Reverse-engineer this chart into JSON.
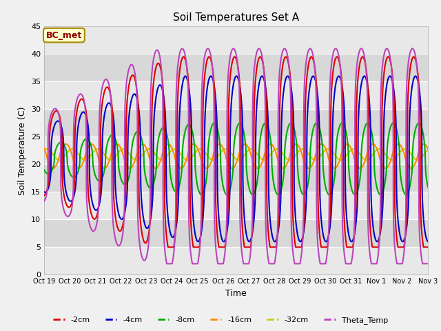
{
  "title": "Soil Temperatures Set A",
  "xlabel": "Time",
  "ylabel": "Soil Temperature (C)",
  "ylim": [
    0,
    45
  ],
  "annotation": "BC_met",
  "background_color": "#f0f0f0",
  "plot_bg_color": "#e8e8e8",
  "grid_color": "white",
  "series": {
    "-2cm": {
      "color": "#dd0000",
      "lw": 1.5
    },
    "-4cm": {
      "color": "#0000cc",
      "lw": 1.5
    },
    "-8cm": {
      "color": "#00aa00",
      "lw": 1.5
    },
    "-16cm": {
      "color": "#ff8800",
      "lw": 1.5
    },
    "-32cm": {
      "color": "#cccc00",
      "lw": 1.5
    },
    "Theta_Temp": {
      "color": "#bb44bb",
      "lw": 1.5
    }
  },
  "x_ticks": [
    "Oct 19",
    "Oct 20",
    "Oct 21",
    "Oct 22",
    "Oct 23",
    "Oct 24",
    "Oct 25",
    "Oct 26",
    "Oct 27",
    "Oct 28",
    "Oct 29",
    "Oct 30",
    "Oct 31",
    "Nov 1",
    "Nov 2",
    "Nov 3"
  ],
  "x_tick_positions": [
    0,
    1,
    2,
    3,
    4,
    5,
    6,
    7,
    8,
    9,
    10,
    11,
    12,
    13,
    14,
    15
  ],
  "num_days": 16,
  "band_colors": [
    "#e8e8e8",
    "#d8d8d8"
  ]
}
